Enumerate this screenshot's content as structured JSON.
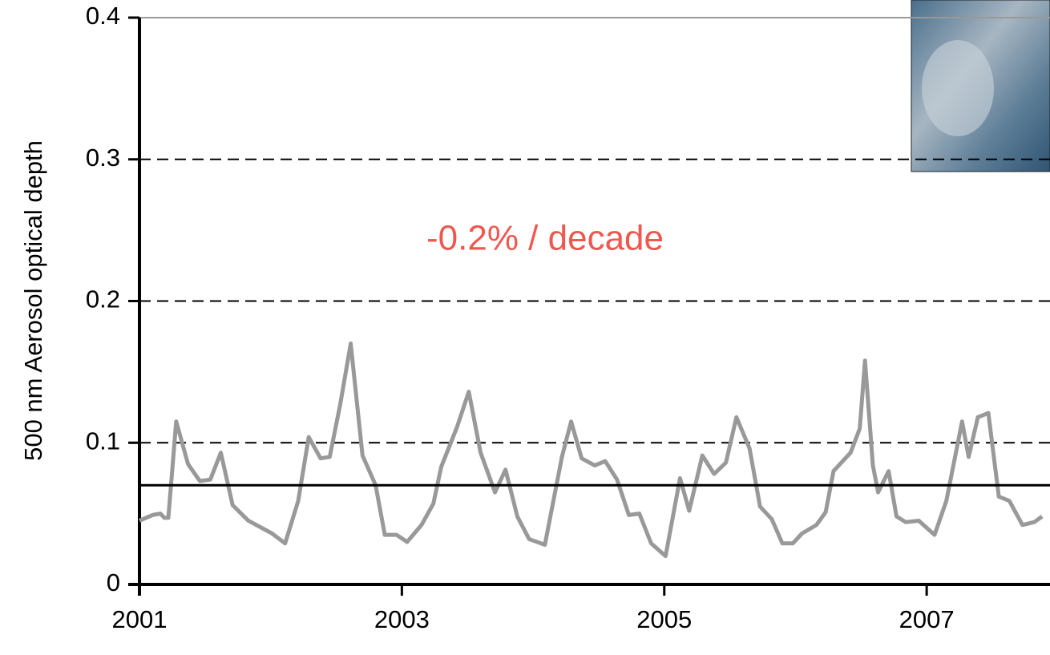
{
  "chart_data": {
    "type": "line",
    "y_label": "500 nm Aerosol optical depth",
    "annotation": "-0.2% / decade",
    "annotation_color": "#f0574f",
    "xlim": [
      2001,
      2007.94
    ],
    "ylim": [
      0,
      0.4
    ],
    "xticks": [
      2001,
      2003,
      2005,
      2007
    ],
    "yticks": [
      0,
      0.1,
      0.2,
      0.3,
      0.4
    ],
    "grid": true,
    "x": [
      2001.0,
      2001.1,
      2001.16,
      2001.19,
      2001.22,
      2001.28,
      2001.37,
      2001.46,
      2001.54,
      2001.62,
      2001.71,
      2001.83,
      2002.01,
      2002.11,
      2002.21,
      2002.29,
      2002.38,
      2002.45,
      2002.53,
      2002.61,
      2002.7,
      2002.8,
      2002.87,
      2002.96,
      2003.04,
      2003.15,
      2003.24,
      2003.3,
      2003.42,
      2003.51,
      2003.6,
      2003.71,
      2003.79,
      2003.88,
      2003.97,
      2004.09,
      2004.22,
      2004.29,
      2004.37,
      2004.47,
      2004.55,
      2004.64,
      2004.73,
      2004.81,
      2004.9,
      2005.01,
      2005.12,
      2005.19,
      2005.29,
      2005.38,
      2005.47,
      2005.55,
      2005.65,
      2005.73,
      2005.82,
      2005.9,
      2005.98,
      2006.05,
      2006.16,
      2006.23,
      2006.29,
      2006.42,
      2006.49,
      2006.53,
      2006.59,
      2006.63,
      2006.71,
      2006.77,
      2006.84,
      2006.94,
      2007.06,
      2007.15,
      2007.27,
      2007.32,
      2007.39,
      2007.47,
      2007.55,
      2007.63,
      2007.73,
      2007.82,
      2007.88
    ],
    "series": [
      {
        "color": "#999999",
        "values": [
          0.045,
          0.049,
          0.05,
          0.047,
          0.047,
          0.115,
          0.085,
          0.073,
          0.074,
          0.093,
          0.056,
          0.045,
          0.036,
          0.029,
          0.059,
          0.104,
          0.089,
          0.09,
          0.127,
          0.17,
          0.091,
          0.07,
          0.035,
          0.035,
          0.03,
          0.042,
          0.057,
          0.083,
          0.111,
          0.136,
          0.093,
          0.065,
          0.081,
          0.048,
          0.032,
          0.028,
          0.09,
          0.115,
          0.089,
          0.084,
          0.087,
          0.074,
          0.049,
          0.05,
          0.029,
          0.02,
          0.075,
          0.052,
          0.091,
          0.078,
          0.086,
          0.118,
          0.096,
          0.055,
          0.046,
          0.029,
          0.029,
          0.036,
          0.042,
          0.051,
          0.08,
          0.093,
          0.11,
          0.158,
          0.084,
          0.065,
          0.08,
          0.048,
          0.044,
          0.045,
          0.035,
          0.059,
          0.115,
          0.09,
          0.118,
          0.121,
          0.062,
          0.059,
          0.042,
          0.044,
          0.048
        ]
      }
    ],
    "trend_line": {
      "color": "#000000",
      "x": [
        2001,
        2007.94
      ],
      "values": [
        0.07,
        0.07
      ]
    }
  }
}
